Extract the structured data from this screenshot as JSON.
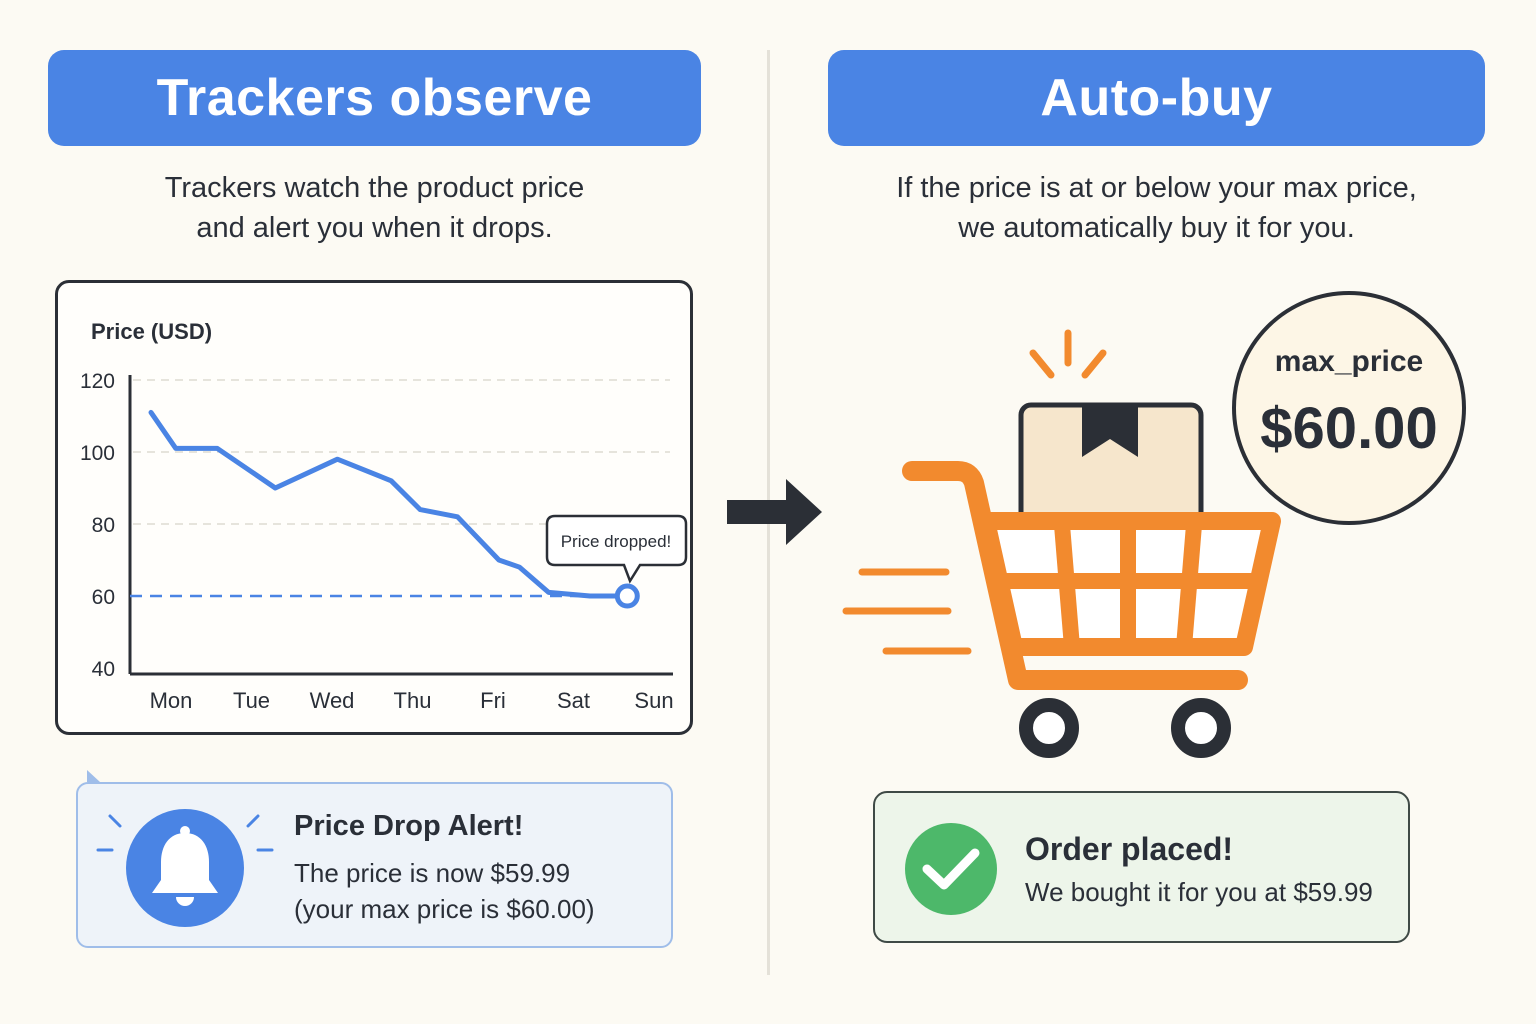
{
  "left_panel": {
    "title": "Trackers observe",
    "description": [
      "Trackers watch the product price",
      "and alert you when it drops."
    ]
  },
  "right_panel": {
    "title": "Auto-buy",
    "description": [
      "If the price is at or below your max price,",
      "we automatically buy it for you."
    ]
  },
  "chart_data": {
    "type": "line",
    "ylabel": "Price (USD)",
    "categories": [
      "Mon",
      "Tue",
      "Wed",
      "Thu",
      "Fri",
      "Sat",
      "Sun"
    ],
    "y_ticks": [
      "120",
      "100",
      "80",
      "60",
      "40"
    ],
    "ylim": [
      40,
      120
    ],
    "series": [
      {
        "x": [
          0.0,
          0.3,
          0.8,
          1.5,
          2.25,
          2.9,
          3.25,
          3.7,
          4.2,
          4.45,
          4.8,
          5.3,
          5.75
        ],
        "y": [
          111,
          101,
          101,
          90,
          98,
          92,
          84,
          82,
          70,
          68,
          61,
          60,
          59.99
        ]
      }
    ],
    "threshold": 60,
    "annotation": "Price dropped!",
    "line_color": "#4a84e4",
    "grid": true
  },
  "alert": {
    "title": "Price Drop Alert!",
    "line1": "The price is now $59.99",
    "line2": "(your max price is $60.00)",
    "icon": "bell-icon"
  },
  "badge": {
    "label": "max_price",
    "value": "$60.00"
  },
  "order": {
    "title": "Order placed!",
    "line": "We bought it for you at $59.99",
    "icon": "check-icon"
  },
  "colors": {
    "accent": "#4a84e4",
    "cart": "#f28a2e",
    "success": "#4db86a",
    "dark": "#2b2f36"
  }
}
